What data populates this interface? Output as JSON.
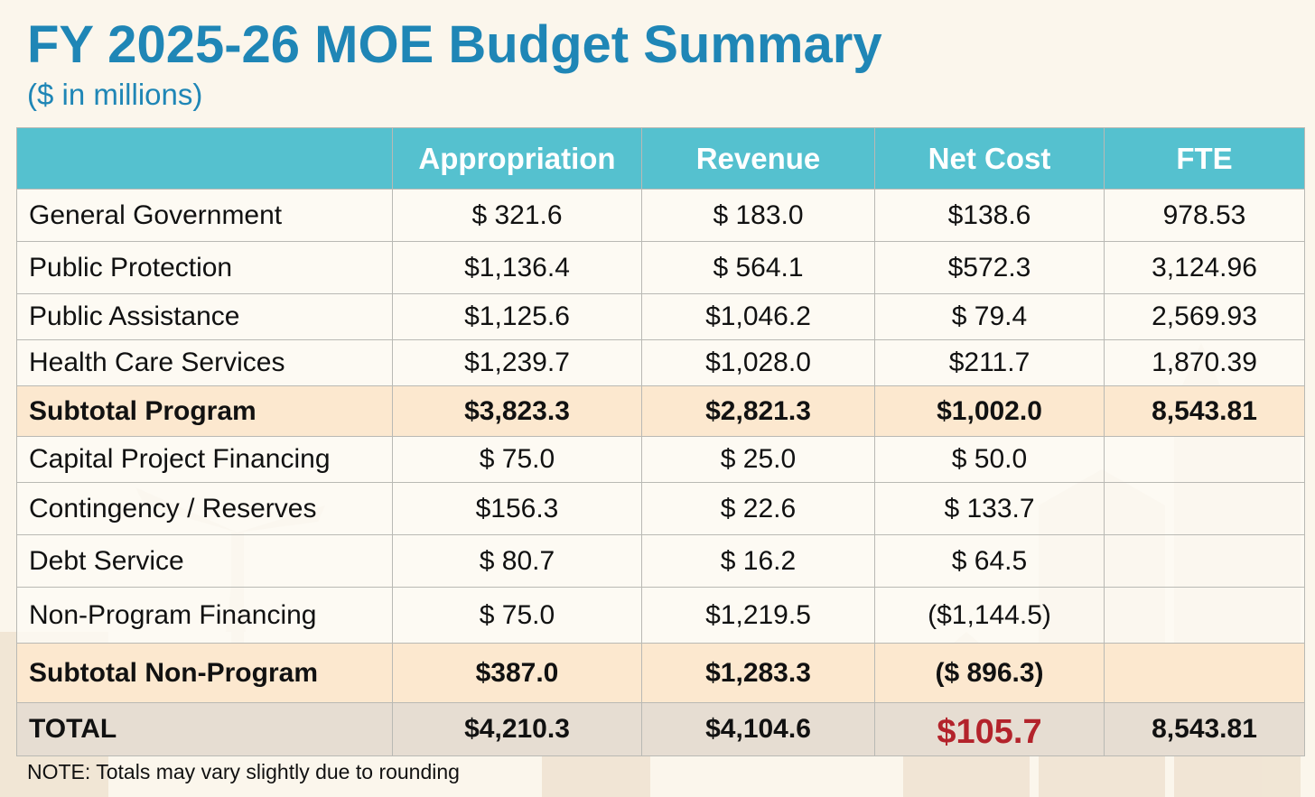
{
  "title": "FY 2025-26 MOE Budget Summary",
  "subtitle": "($ in millions)",
  "table": {
    "headers": [
      "",
      "Appropriation",
      "Revenue",
      "Net Cost",
      "FTE"
    ],
    "rows": [
      {
        "label": "General Government",
        "appropriation": "$  321.6",
        "revenue": "$    183.0",
        "net_cost": "$138.6",
        "fte": "978.53"
      },
      {
        "label": "Public Protection",
        "appropriation": "$1,136.4",
        "revenue": "$    564.1",
        "net_cost": "$572.3",
        "fte": "3,124.96"
      },
      {
        "label": "Public Assistance",
        "appropriation": "$1,125.6",
        "revenue": "$1,046.2",
        "net_cost": "$  79.4",
        "fte": "2,569.93"
      },
      {
        "label": "Health Care Services",
        "appropriation": "$1,239.7",
        "revenue": "$1,028.0",
        "net_cost": "$211.7",
        "fte": "1,870.39"
      },
      {
        "label": "Subtotal Program",
        "appropriation": "$3,823.3",
        "revenue": "$2,821.3",
        "net_cost": "$1,002.0",
        "fte": "8,543.81"
      },
      {
        "label": "Capital Project Financing",
        "appropriation": "$ 75.0",
        "revenue": "$    25.0",
        "net_cost": "$   50.0",
        "fte": ""
      },
      {
        "label": "Contingency / Reserves",
        "appropriation": "$156.3",
        "revenue": "$    22.6",
        "net_cost": "$ 133.7",
        "fte": ""
      },
      {
        "label": "Debt Service",
        "appropriation": "$ 80.7",
        "revenue": "$    16.2",
        "net_cost": "$    64.5",
        "fte": ""
      },
      {
        "label": "Non-Program Financing",
        "appropriation": "$ 75.0",
        "revenue": "$1,219.5",
        "net_cost": "($1,144.5)",
        "fte": ""
      },
      {
        "label": "Subtotal Non-Program",
        "appropriation": "$387.0",
        "revenue": "$1,283.3",
        "net_cost": "($  896.3)",
        "fte": ""
      },
      {
        "label": "TOTAL",
        "appropriation": "$4,210.3",
        "revenue": "$4,104.6",
        "net_cost": "$105.7",
        "fte": "8,543.81"
      }
    ]
  },
  "note": "NOTE: Totals may vary slightly due to rounding",
  "colors": {
    "title": "#1f86b6",
    "header_bg": "#55c1cf",
    "subtotal_bg": "#fce8cf",
    "total_bg": "#e6ddd2",
    "net_total": "#b3232b"
  }
}
